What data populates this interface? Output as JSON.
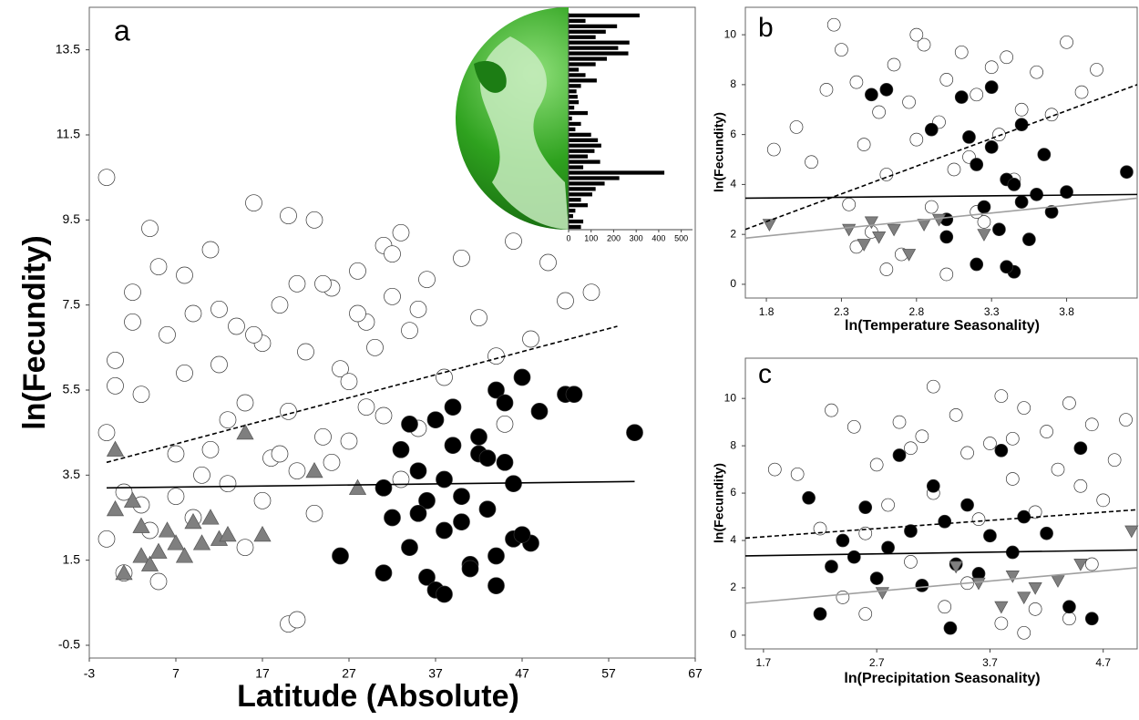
{
  "chart_data": [
    {
      "type": "scatter",
      "label": "a",
      "x_label": "Latitude (Absolute)",
      "y_label": "ln(Fecundity)",
      "xlim": [
        -3,
        67
      ],
      "xticks": [
        -3,
        7,
        17,
        27,
        37,
        47,
        57,
        67
      ],
      "ylim": [
        -0.8,
        14.5
      ],
      "yticks": [
        -0.5,
        1.5,
        3.5,
        5.5,
        7.5,
        9.5,
        11.5,
        13.5
      ],
      "series": [
        {
          "color": "#ffffff",
          "marker": "circle",
          "x": [
            -1,
            0,
            1,
            2,
            3,
            4,
            5,
            6,
            7,
            8,
            9,
            10,
            11,
            12,
            13,
            14,
            15,
            16,
            17,
            18,
            19,
            20,
            21,
            22,
            23,
            24,
            25,
            26,
            27,
            28,
            29,
            30,
            31,
            32,
            33,
            34,
            35,
            36,
            38,
            40,
            42,
            44,
            46,
            48,
            50,
            52,
            -1,
            1,
            3,
            5,
            7,
            9,
            11,
            13,
            15,
            17,
            19,
            21,
            23,
            25,
            27,
            29,
            31,
            33,
            35,
            0,
            2,
            4,
            8,
            12,
            16,
            20,
            24,
            28,
            32,
            45,
            55,
            20,
            21,
            -1
          ],
          "values": [
            4.5,
            6.2,
            3.1,
            7.8,
            5.4,
            2.2,
            8.4,
            6.8,
            4.0,
            5.9,
            7.3,
            3.5,
            8.8,
            6.1,
            4.8,
            7.0,
            5.2,
            9.9,
            6.6,
            3.9,
            7.5,
            5.0,
            8.0,
            6.4,
            9.5,
            4.4,
            7.9,
            6.0,
            5.7,
            8.3,
            7.1,
            6.5,
            8.9,
            7.7,
            9.2,
            6.9,
            7.4,
            8.1,
            5.8,
            8.6,
            7.2,
            6.3,
            9.0,
            6.7,
            8.5,
            7.6,
            2.0,
            1.2,
            2.8,
            1.0,
            3.0,
            2.5,
            4.1,
            3.3,
            1.8,
            2.9,
            4.0,
            3.6,
            2.6,
            3.8,
            4.3,
            5.1,
            4.9,
            3.4,
            4.6,
            5.6,
            7.1,
            9.3,
            8.2,
            7.4,
            6.8,
            9.6,
            8.0,
            7.3,
            8.7,
            4.7,
            7.8,
            0,
            0.1,
            10.5
          ]
        },
        {
          "color": "#000000",
          "marker": "circle",
          "x": [
            31,
            32,
            33,
            34,
            35,
            36,
            37,
            38,
            39,
            40,
            41,
            42,
            43,
            44,
            45,
            46,
            47,
            48,
            34,
            36,
            38,
            40,
            42,
            44,
            46,
            35,
            37,
            39,
            41,
            43,
            45,
            47,
            49,
            52,
            53,
            60,
            26,
            31,
            38,
            44
          ],
          "values": [
            3.2,
            2.5,
            4.1,
            1.8,
            3.6,
            2.9,
            4.8,
            2.2,
            5.1,
            3.0,
            1.4,
            4.4,
            2.7,
            5.5,
            3.8,
            2.0,
            5.8,
            1.9,
            4.7,
            1.1,
            3.4,
            2.4,
            4.0,
            1.6,
            3.3,
            2.6,
            0.8,
            4.2,
            1.3,
            3.9,
            5.2,
            2.1,
            5.0,
            5.4,
            5.4,
            4.5,
            1.6,
            1.2,
            0.7,
            0.9
          ]
        },
        {
          "color": "#7f7f7f",
          "marker": "triangle",
          "x": [
            0,
            0,
            1,
            2,
            3,
            3,
            4,
            5,
            6,
            7,
            8,
            9,
            10,
            11,
            12,
            13,
            15,
            17,
            23,
            28
          ],
          "values": [
            4.1,
            2.7,
            1.2,
            2.9,
            1.6,
            2.3,
            1.4,
            1.7,
            2.2,
            1.9,
            1.6,
            2.4,
            1.9,
            2.5,
            2.0,
            2.1,
            4.5,
            2.1,
            3.6,
            3.2
          ]
        }
      ],
      "fits": [
        {
          "color": "#000000",
          "dashed": true,
          "x": [
            -1,
            58
          ],
          "values": [
            3.8,
            7.0
          ]
        },
        {
          "color": "#000000",
          "dashed": false,
          "x": [
            -1,
            60
          ],
          "values": [
            3.2,
            3.35
          ]
        }
      ]
    },
    {
      "type": "scatter",
      "label": "b",
      "x_label": "ln(Temperature Seasonality)",
      "y_label": "ln(Fecundity)",
      "xlim": [
        1.66,
        4.27
      ],
      "xticks": [
        1.8,
        2.3,
        2.8,
        3.3,
        3.8
      ],
      "ylim": [
        -0.55,
        11.1
      ],
      "yticks": [
        0,
        2,
        4,
        6,
        8,
        10
      ],
      "series": [
        {
          "color": "#ffffff",
          "marker": "circle",
          "x": [
            1.85,
            2.0,
            2.1,
            2.2,
            2.3,
            2.35,
            2.4,
            2.45,
            2.5,
            2.55,
            2.6,
            2.65,
            2.7,
            2.75,
            2.8,
            2.85,
            2.9,
            2.95,
            3.0,
            3.05,
            3.1,
            3.15,
            3.2,
            3.25,
            3.3,
            3.35,
            3.4,
            3.45,
            3.5,
            3.6,
            3.7,
            3.8,
            3.9,
            4.0,
            2.4,
            2.6,
            2.8,
            3.0,
            3.2,
            2.25
          ],
          "values": [
            5.4,
            6.3,
            4.9,
            7.8,
            9.4,
            3.2,
            8.1,
            5.6,
            2.1,
            6.9,
            4.4,
            8.8,
            1.2,
            7.3,
            5.8,
            9.6,
            3.1,
            6.5,
            8.2,
            4.6,
            9.3,
            5.1,
            7.6,
            2.5,
            8.7,
            6.0,
            9.1,
            4.2,
            7.0,
            8.5,
            6.8,
            9.7,
            7.7,
            8.6,
            1.5,
            0.6,
            10.0,
            0.4,
            2.9,
            10.4
          ]
        },
        {
          "color": "#000000",
          "marker": "circle",
          "x": [
            2.5,
            2.6,
            2.9,
            3.0,
            3.1,
            3.15,
            3.2,
            3.25,
            3.3,
            3.35,
            3.4,
            3.45,
            3.5,
            3.55,
            3.6,
            3.65,
            3.7,
            3.8,
            4.2,
            3.2,
            3.4,
            3.5,
            3.3,
            3.0,
            3.45
          ],
          "values": [
            7.6,
            7.8,
            6.2,
            2.6,
            7.5,
            5.9,
            4.8,
            3.1,
            5.5,
            2.2,
            4.2,
            0.5,
            6.4,
            1.8,
            3.6,
            5.2,
            2.9,
            3.7,
            4.5,
            0.8,
            0.7,
            3.3,
            7.9,
            1.9,
            4.0
          ]
        },
        {
          "color": "#7f7f7f",
          "marker": "triangle-down",
          "x": [
            1.82,
            2.35,
            2.45,
            2.5,
            2.55,
            2.65,
            2.75,
            2.85,
            2.95,
            3.25
          ],
          "values": [
            2.4,
            2.2,
            1.6,
            2.5,
            1.9,
            2.2,
            1.2,
            2.4,
            2.6,
            2.0
          ]
        }
      ],
      "fits": [
        {
          "color": "#000000",
          "dashed": true,
          "x": [
            1.66,
            4.27
          ],
          "values": [
            2.2,
            8.0
          ]
        },
        {
          "color": "#000000",
          "dashed": false,
          "x": [
            1.66,
            4.27
          ],
          "values": [
            3.45,
            3.6
          ]
        },
        {
          "color": "#a0a0a0",
          "dashed": false,
          "x": [
            1.66,
            4.27
          ],
          "values": [
            1.85,
            3.45
          ]
        }
      ]
    },
    {
      "type": "scatter",
      "label": "c",
      "x_label": "ln(Precipitation Seasonality)",
      "y_label": "ln(Fecundity)",
      "xlim": [
        1.54,
        5.0
      ],
      "xticks": [
        1.7,
        2.7,
        3.7,
        4.7
      ],
      "ylim": [
        -0.58,
        11.7
      ],
      "yticks": [
        0,
        2,
        4,
        6,
        8,
        10
      ],
      "series": [
        {
          "color": "#ffffff",
          "marker": "circle",
          "x": [
            2.0,
            2.3,
            2.5,
            2.6,
            2.7,
            2.8,
            2.9,
            3.0,
            3.1,
            3.2,
            3.3,
            3.4,
            3.5,
            3.6,
            3.7,
            3.8,
            3.9,
            4.0,
            4.1,
            4.2,
            4.3,
            4.4,
            4.5,
            4.6,
            4.7,
            4.8,
            4.9,
            2.4,
            2.6,
            3.2,
            3.5,
            3.8,
            4.1,
            4.4,
            4.6,
            3.0,
            2.2,
            1.8,
            4.0,
            3.9
          ],
          "values": [
            6.8,
            9.5,
            8.8,
            4.3,
            7.2,
            5.5,
            9.0,
            3.1,
            8.4,
            6.0,
            1.2,
            9.3,
            7.7,
            4.9,
            8.1,
            10.1,
            6.6,
            9.6,
            5.2,
            8.6,
            7.0,
            9.8,
            6.3,
            8.9,
            5.7,
            7.4,
            9.1,
            1.6,
            0.9,
            10.5,
            2.2,
            0.5,
            1.1,
            0.7,
            3.0,
            7.9,
            4.5,
            7.0,
            0.1,
            8.3
          ]
        },
        {
          "color": "#000000",
          "marker": "circle",
          "x": [
            2.1,
            2.2,
            2.3,
            2.4,
            2.5,
            2.6,
            2.7,
            2.8,
            2.9,
            3.0,
            3.1,
            3.2,
            3.3,
            3.4,
            3.5,
            3.6,
            3.7,
            3.8,
            3.9,
            4.0,
            4.2,
            4.4,
            4.6,
            4.5,
            3.35
          ],
          "values": [
            5.8,
            0.9,
            2.9,
            4.0,
            3.3,
            5.4,
            2.4,
            3.7,
            7.6,
            4.4,
            2.1,
            6.3,
            4.8,
            3.0,
            5.5,
            2.6,
            4.2,
            7.8,
            3.5,
            5.0,
            4.3,
            1.2,
            0.7,
            7.9,
            0.3
          ]
        },
        {
          "color": "#7f7f7f",
          "marker": "triangle-down",
          "x": [
            2.75,
            3.4,
            3.6,
            3.8,
            3.9,
            4.0,
            4.1,
            4.3,
            4.5,
            4.95
          ],
          "values": [
            1.8,
            2.9,
            2.2,
            1.2,
            2.5,
            1.6,
            2.0,
            2.3,
            3.0,
            4.4
          ]
        }
      ],
      "fits": [
        {
          "color": "#000000",
          "dashed": true,
          "x": [
            1.54,
            5.0
          ],
          "values": [
            4.1,
            5.3
          ]
        },
        {
          "color": "#000000",
          "dashed": false,
          "x": [
            1.54,
            5.0
          ],
          "values": [
            3.35,
            3.6
          ]
        },
        {
          "color": "#a0a0a0",
          "dashed": false,
          "x": [
            1.54,
            5.0
          ],
          "values": [
            1.35,
            2.85
          ]
        }
      ]
    },
    {
      "type": "bar",
      "orientation": "horizontal",
      "color": "#000000",
      "values": [
        315,
        75,
        215,
        165,
        120,
        270,
        220,
        265,
        170,
        120,
        45,
        75,
        125,
        55,
        35,
        40,
        45,
        25,
        85,
        15,
        55,
        30,
        100,
        130,
        145,
        115,
        85,
        140,
        65,
        425,
        225,
        160,
        120,
        105,
        55,
        85,
        30,
        20,
        65,
        55
      ],
      "xlim": [
        0,
        550
      ],
      "xticks": [
        0,
        100,
        200,
        300,
        400,
        500
      ]
    }
  ]
}
